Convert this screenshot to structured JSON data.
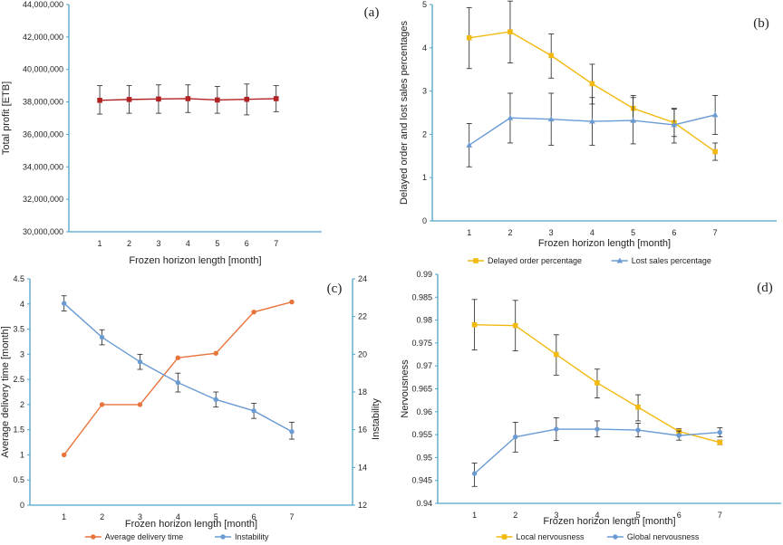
{
  "chart_data": [
    {
      "id": "a",
      "type": "line",
      "panel_label": "(a)",
      "title": "",
      "xlabel": "Frozen horizon length [month]",
      "ylabel": "Total profit [ETB]",
      "categories": [
        "1",
        "2",
        "3",
        "4",
        "5",
        "6",
        "7"
      ],
      "ylim": [
        30000000,
        44000000
      ],
      "yticks": [
        "30,000,000",
        "32,000,000",
        "34,000,000",
        "36,000,000",
        "38,000,000",
        "40,000,000",
        "42,000,000",
        "44,000,000"
      ],
      "grid": false,
      "legend": "none",
      "series": [
        {
          "color": "#b22222",
          "marker": "square",
          "values": [
            38100000,
            38150000,
            38180000,
            38200000,
            38120000,
            38160000,
            38200000
          ],
          "err_low": [
            37250000,
            37300000,
            37300000,
            37350000,
            37300000,
            37200000,
            37400000
          ],
          "err_high": [
            39000000,
            39000000,
            39050000,
            39050000,
            38950000,
            39100000,
            39000000
          ]
        }
      ]
    },
    {
      "id": "b",
      "type": "line",
      "panel_label": "(b)",
      "title": "",
      "xlabel": "Frozen horizon length [month]",
      "ylabel": "Delayed order and lost sales percentages",
      "categories": [
        "1",
        "2",
        "3",
        "4",
        "5",
        "6",
        "7"
      ],
      "ylim": [
        0,
        5
      ],
      "yticks": [
        "0",
        "1",
        "2",
        "3",
        "4",
        "5"
      ],
      "grid": false,
      "legend": "bottom",
      "series": [
        {
          "name": "Delayed order percentage",
          "color": "#f2b90f",
          "marker": "square",
          "values": [
            4.23,
            4.37,
            3.82,
            3.17,
            2.6,
            2.27,
            1.6
          ],
          "err_low": [
            3.52,
            3.65,
            3.3,
            2.7,
            2.3,
            1.95,
            1.4
          ],
          "err_high": [
            4.93,
            5.08,
            4.32,
            3.62,
            2.9,
            2.6,
            1.8
          ]
        },
        {
          "name": "Lost sales percentage",
          "color": "#6a9bd3",
          "marker": "triangle",
          "values": [
            1.75,
            2.38,
            2.35,
            2.3,
            2.32,
            2.22,
            2.45
          ],
          "err_low": [
            1.25,
            1.8,
            1.75,
            1.75,
            1.78,
            1.8,
            2.0
          ],
          "err_high": [
            2.25,
            2.95,
            2.95,
            2.85,
            2.85,
            2.58,
            2.9
          ]
        }
      ]
    },
    {
      "id": "c",
      "type": "line",
      "panel_label": "(c)",
      "title": "",
      "xlabel": "Frozen horizon length [month]",
      "ylabel": "Average delivery time [month]",
      "ylabel_right": "Instability",
      "categories": [
        "1",
        "2",
        "3",
        "4",
        "5",
        "6",
        "7"
      ],
      "ylim": [
        0,
        4.5
      ],
      "yticks": [
        "0",
        "0.5",
        "1",
        "1.5",
        "2",
        "2.5",
        "3",
        "3.5",
        "4",
        "4.5"
      ],
      "ylim_right": [
        12,
        24
      ],
      "yticks_right": [
        "12",
        "14",
        "16",
        "18",
        "20",
        "22",
        "24"
      ],
      "grid": false,
      "legend": "bottom",
      "series": [
        {
          "name": "Average delivery time",
          "color": "#e8743b",
          "marker": "circle",
          "axis": "left",
          "values": [
            1.0,
            2.0,
            2.0,
            2.93,
            3.02,
            3.84,
            4.04
          ]
        },
        {
          "name": "Instability",
          "color": "#6a9bd3",
          "marker": "circle",
          "axis": "right",
          "values": [
            22.7,
            20.9,
            19.6,
            18.5,
            17.6,
            17.0,
            15.9
          ],
          "err_low": [
            22.3,
            20.5,
            19.2,
            18.0,
            17.2,
            16.6,
            15.5
          ],
          "err_high": [
            23.1,
            21.3,
            20.0,
            19.0,
            18.0,
            17.4,
            16.4
          ]
        }
      ]
    },
    {
      "id": "d",
      "type": "line",
      "panel_label": "(d)",
      "title": "",
      "xlabel": "Frozen horizon length [month]",
      "ylabel": "Nervousness",
      "categories": [
        "1",
        "2",
        "3",
        "4",
        "5",
        "6",
        "7"
      ],
      "ylim": [
        0.94,
        0.99
      ],
      "yticks": [
        "0.94",
        "0.945",
        "0.95",
        "0.955",
        "0.96",
        "0.965",
        "0.97",
        "0.975",
        "0.98",
        "0.985",
        "0.99"
      ],
      "grid": false,
      "legend": "bottom",
      "series": [
        {
          "name": "Local nervousness",
          "color": "#f2b90f",
          "marker": "square",
          "values": [
            0.979,
            0.9788,
            0.9725,
            0.9663,
            0.961,
            0.9557,
            0.9533
          ],
          "err_low": [
            0.9735,
            0.9733,
            0.968,
            0.963,
            0.958,
            0.955,
            0.9528
          ],
          "err_high": [
            0.9845,
            0.9843,
            0.9768,
            0.9693,
            0.9637,
            0.9563,
            0.9538
          ]
        },
        {
          "name": "Global nervousness",
          "color": "#6a9bd3",
          "marker": "circle",
          "values": [
            0.9465,
            0.9545,
            0.9562,
            0.9562,
            0.956,
            0.9548,
            0.9555
          ],
          "err_low": [
            0.9437,
            0.9512,
            0.9537,
            0.9545,
            0.9545,
            0.9538,
            0.9545
          ],
          "err_high": [
            0.9488,
            0.9577,
            0.9587,
            0.958,
            0.9575,
            0.9558,
            0.9565
          ]
        }
      ]
    }
  ]
}
